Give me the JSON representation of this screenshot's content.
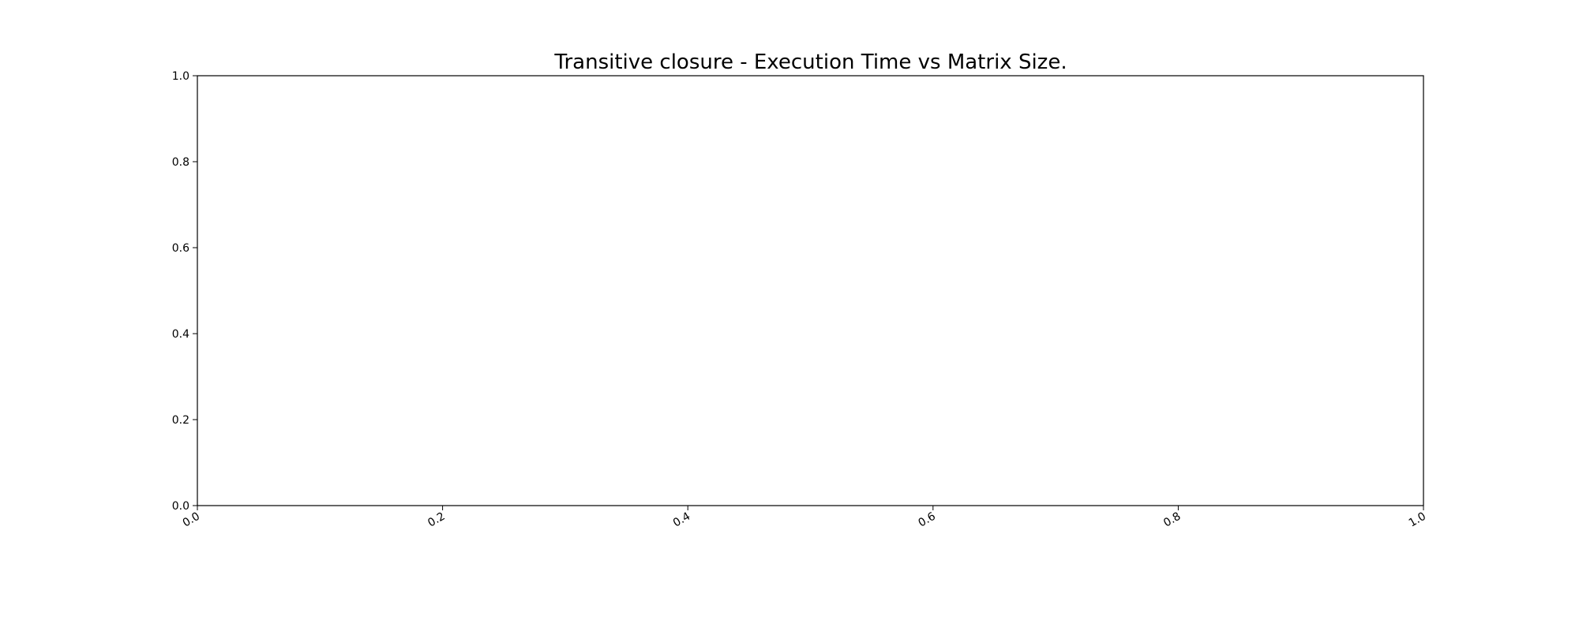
{
  "chart_data": {
    "type": "line",
    "title": "Transitive closure - Execution Time vs Matrix Size.",
    "xlabel": "",
    "ylabel": "",
    "xlim": [
      0.0,
      1.0
    ],
    "ylim": [
      0.0,
      1.0
    ],
    "x_ticks": [
      "0.0",
      "0.2",
      "0.4",
      "0.6",
      "0.8",
      "1.0"
    ],
    "y_ticks": [
      "0.0",
      "0.2",
      "0.4",
      "0.6",
      "0.8",
      "1.0"
    ],
    "x_tick_rotation_deg": 30,
    "grid": false,
    "series": [],
    "colors": {
      "axes": "#000000",
      "background": "#ffffff"
    }
  }
}
